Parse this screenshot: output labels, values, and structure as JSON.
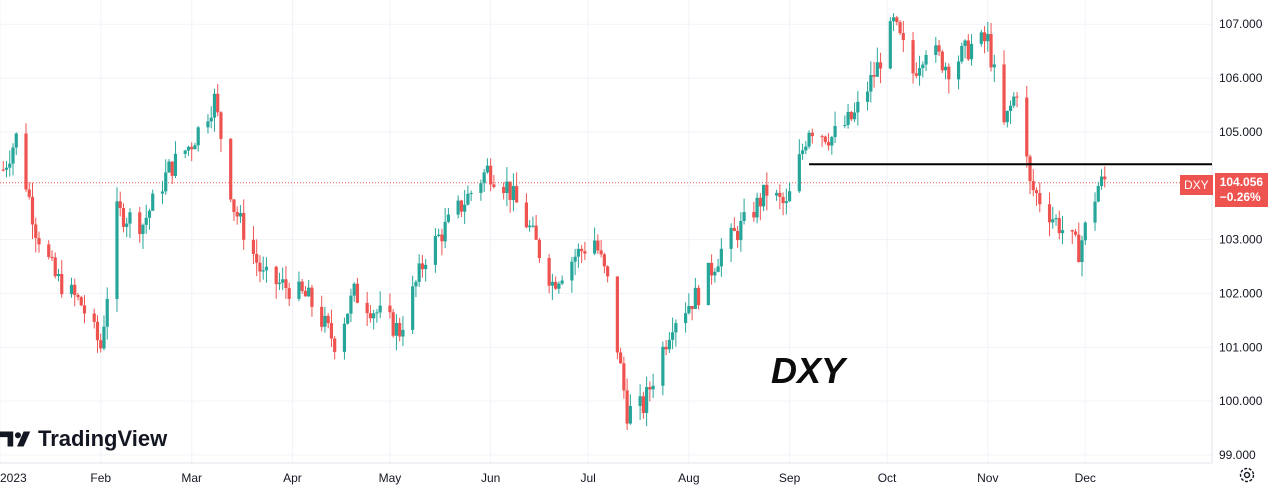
{
  "brand": {
    "name": "TradingView",
    "logo_icon": "tradingview-logo-icon"
  },
  "annotation": {
    "text": "DXY"
  },
  "price_label": {
    "symbol": "DXY",
    "price": "104.056",
    "change": "−0.26%",
    "color": "#ef5350"
  },
  "colors": {
    "up": "#26a69a",
    "down": "#ef5350",
    "line": "#000000"
  },
  "settings_icon": "gear-icon",
  "chart_data": {
    "type": "candlestick",
    "y_axis_labels": [
      "107.000",
      "106.000",
      "105.000",
      "104.000",
      "103.000",
      "102.000",
      "101.000",
      "100.000",
      "99.000"
    ],
    "x_axis_labels": [
      "2023",
      "Feb",
      "Mar",
      "Apr",
      "May",
      "Jun",
      "Jul",
      "Aug",
      "Sep",
      "Oct",
      "Nov",
      "Dec"
    ],
    "ylim": [
      98.85,
      107.45
    ],
    "last_price": 104.056,
    "horizontal_line": {
      "value": 104.4,
      "from": "2023-09-07",
      "to": "2023-12-31"
    },
    "anchors": [
      [
        "2023-01-02",
        104.3
      ],
      [
        "2023-01-06",
        104.9
      ],
      [
        "2023-01-12",
        103.2
      ],
      [
        "2023-01-18",
        102.3
      ],
      [
        "2023-01-26",
        101.8
      ],
      [
        "2023-02-01",
        101.0
      ],
      [
        "2023-02-06",
        103.5
      ],
      [
        "2023-02-14",
        103.3
      ],
      [
        "2023-02-22",
        104.3
      ],
      [
        "2023-03-01",
        104.8
      ],
      [
        "2023-03-08",
        105.6
      ],
      [
        "2023-03-14",
        103.6
      ],
      [
        "2023-03-23",
        102.3
      ],
      [
        "2023-03-31",
        102.1
      ],
      [
        "2023-04-06",
        101.9
      ],
      [
        "2023-04-14",
        101.1
      ],
      [
        "2023-04-20",
        102.0
      ],
      [
        "2023-04-28",
        101.6
      ],
      [
        "2023-05-04",
        101.3
      ],
      [
        "2023-05-12",
        102.7
      ],
      [
        "2023-05-19",
        103.3
      ],
      [
        "2023-05-31",
        104.3
      ],
      [
        "2023-06-06",
        104.0
      ],
      [
        "2023-06-13",
        103.2
      ],
      [
        "2023-06-20",
        102.2
      ],
      [
        "2023-06-27",
        102.7
      ],
      [
        "2023-07-03",
        103.0
      ],
      [
        "2023-07-07",
        102.2
      ],
      [
        "2023-07-13",
        99.8
      ],
      [
        "2023-07-18",
        99.9
      ],
      [
        "2023-07-27",
        101.5
      ],
      [
        "2023-08-04",
        102.0
      ],
      [
        "2023-08-11",
        102.8
      ],
      [
        "2023-08-18",
        103.3
      ],
      [
        "2023-08-25",
        103.9
      ],
      [
        "2023-08-31",
        103.6
      ],
      [
        "2023-09-07",
        105.1
      ],
      [
        "2023-09-14",
        104.9
      ],
      [
        "2023-09-21",
        105.3
      ],
      [
        "2023-09-28",
        106.2
      ],
      [
        "2023-10-03",
        107.0
      ],
      [
        "2023-10-09",
        106.1
      ],
      [
        "2023-10-13",
        106.6
      ],
      [
        "2023-10-20",
        106.2
      ],
      [
        "2023-10-27",
        106.6
      ],
      [
        "2023-11-01",
        106.7
      ],
      [
        "2023-11-06",
        105.1
      ],
      [
        "2023-11-10",
        105.8
      ],
      [
        "2023-11-14",
        104.0
      ],
      [
        "2023-11-20",
        103.5
      ],
      [
        "2023-11-29",
        102.8
      ],
      [
        "2023-12-01",
        103.2
      ],
      [
        "2023-12-05",
        104.0
      ],
      [
        "2023-12-07",
        104.1
      ]
    ]
  }
}
